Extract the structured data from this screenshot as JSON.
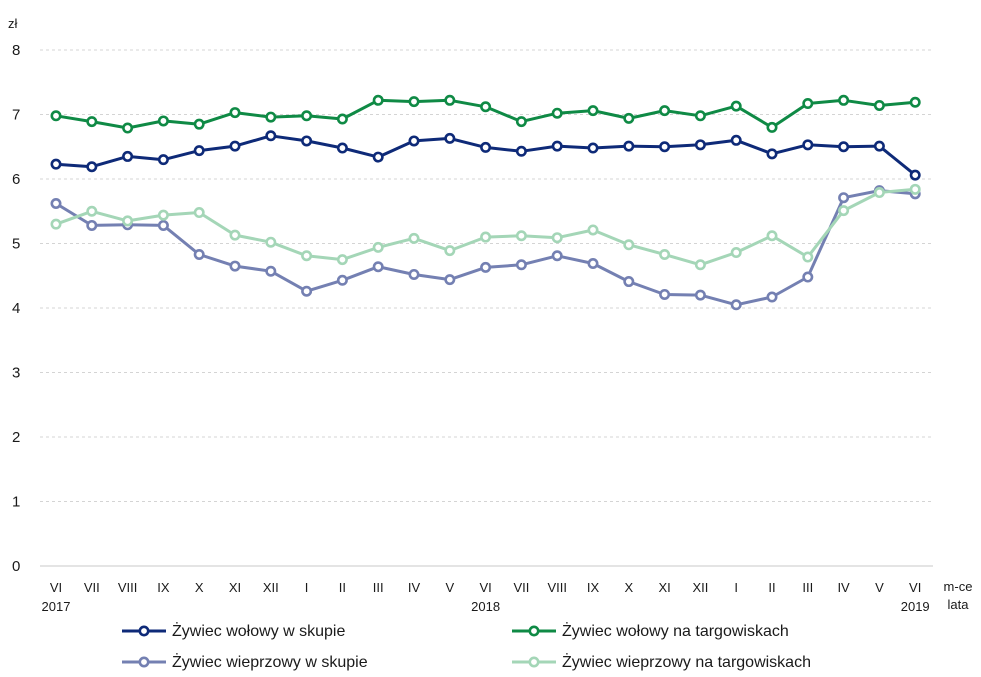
{
  "chart_data": {
    "type": "line",
    "y_unit": "zł",
    "x_axis_right_label_top": "m-ce",
    "x_axis_right_label_bottom": "lata",
    "categories": [
      "VI",
      "VII",
      "VIII",
      "IX",
      "X",
      "XI",
      "XII",
      "I",
      "II",
      "III",
      "IV",
      "V",
      "VI",
      "VII",
      "VIII",
      "IX",
      "X",
      "XI",
      "XII",
      "I",
      "II",
      "III",
      "IV",
      "V",
      "VI"
    ],
    "year_labels": [
      {
        "index": 0,
        "label": "2017"
      },
      {
        "index": 12,
        "label": "2018"
      },
      {
        "index": 24,
        "label": "2019"
      }
    ],
    "ylim": [
      0,
      8
    ],
    "yticks": [
      0,
      1,
      2,
      3,
      4,
      5,
      6,
      7,
      8
    ],
    "grid": true,
    "legend_position": "bottom",
    "series": [
      {
        "name": "Żywiec wołowy w skupie",
        "color": "#0e2a78",
        "values": [
          6.23,
          6.19,
          6.35,
          6.3,
          6.44,
          6.51,
          6.67,
          6.59,
          6.48,
          6.34,
          6.59,
          6.63,
          6.49,
          6.43,
          6.51,
          6.48,
          6.51,
          6.5,
          6.53,
          6.6,
          6.39,
          6.53,
          6.5,
          6.51,
          6.06
        ]
      },
      {
        "name": "Żywiec wołowy na targowiskach",
        "color": "#0f8a45",
        "values": [
          6.98,
          6.89,
          6.79,
          6.9,
          6.85,
          7.03,
          6.96,
          6.98,
          6.93,
          7.22,
          7.2,
          7.22,
          7.12,
          6.89,
          7.02,
          7.06,
          6.94,
          7.06,
          6.98,
          7.13,
          6.8,
          7.17,
          7.22,
          7.14,
          7.19
        ]
      },
      {
        "name": "Żywiec wieprzowy w skupie",
        "color": "#7480b2",
        "values": [
          5.62,
          5.28,
          5.29,
          5.28,
          4.83,
          4.65,
          4.57,
          4.26,
          4.43,
          4.64,
          4.52,
          4.44,
          4.63,
          4.67,
          4.81,
          4.69,
          4.41,
          4.21,
          4.2,
          4.05,
          4.17,
          4.48,
          5.71,
          5.82,
          5.77
        ]
      },
      {
        "name": "Żywiec wieprzowy na targowiskach",
        "color": "#a4d6b7",
        "values": [
          5.3,
          5.5,
          5.35,
          5.44,
          5.48,
          5.13,
          5.02,
          4.81,
          4.75,
          4.94,
          5.08,
          4.89,
          5.1,
          5.12,
          5.09,
          5.21,
          4.98,
          4.83,
          4.67,
          4.86,
          5.12,
          4.79,
          5.51,
          5.79,
          5.84
        ]
      }
    ]
  }
}
